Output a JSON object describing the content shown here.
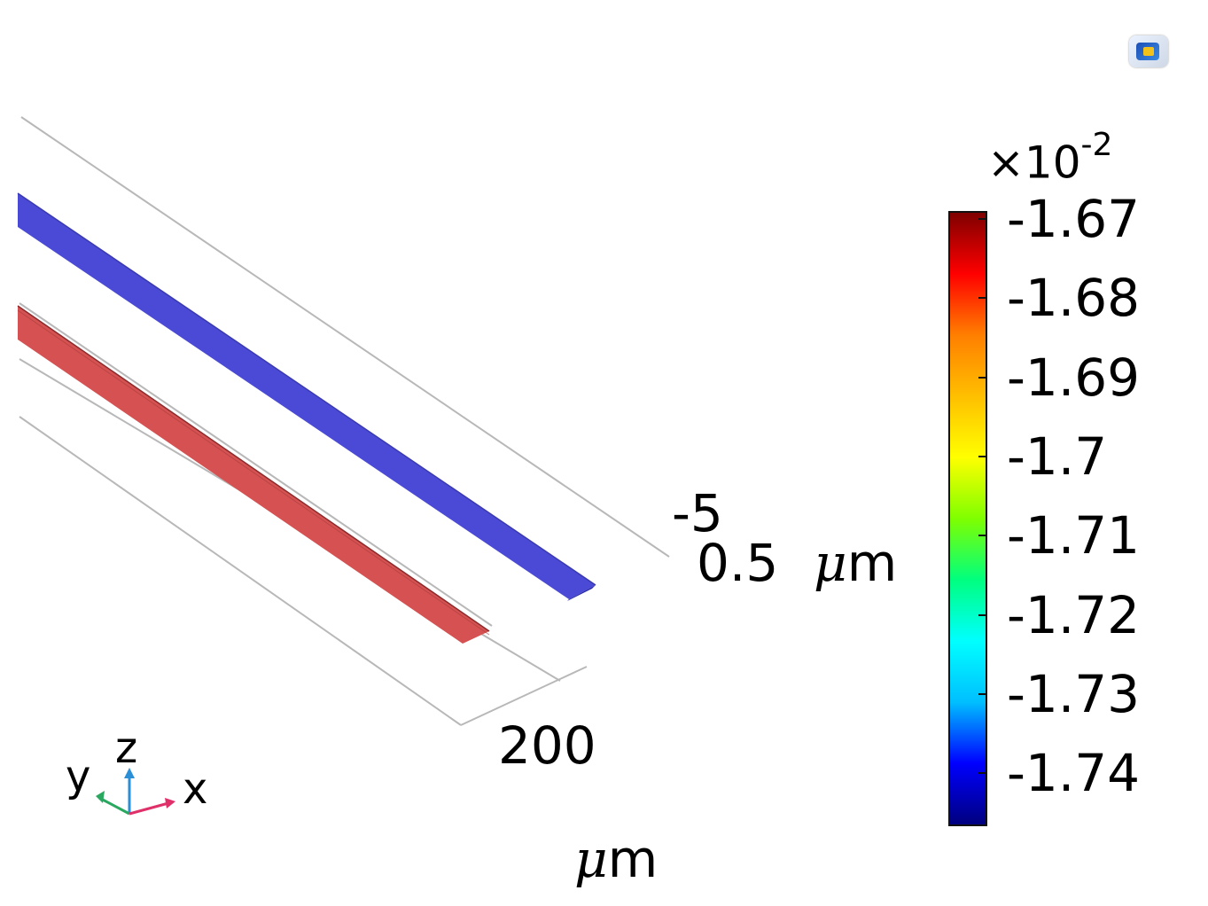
{
  "colorbar": {
    "multiplier_base": "×10",
    "multiplier_exp": "-2",
    "ticks": [
      "-1.67",
      "-1.68",
      "-1.69",
      "-1.7",
      "-1.71",
      "-1.72",
      "-1.73",
      "-1.74"
    ],
    "colormap": [
      "#00007f",
      "#0000ff",
      "#00bfff",
      "#00ffff",
      "#00ff7f",
      "#7fff00",
      "#ffff00",
      "#ffbf00",
      "#ff7f00",
      "#ff0000",
      "#7f0000"
    ]
  },
  "axes": {
    "z_tick_top": "-5",
    "z_tick_bottom": "0.5",
    "z_unit_mu": "μ",
    "z_unit_m": "m",
    "x_tick": "200",
    "x_unit_mu": "μ",
    "x_unit_m": "m"
  },
  "triad": {
    "y": "y",
    "z": "z",
    "x": "x"
  },
  "colors": {
    "blue_strip": "#4a4ad6",
    "red_strip": "#e05050",
    "outline": "#b8b8b8"
  },
  "icons": {
    "view_icon": "view-icon"
  }
}
